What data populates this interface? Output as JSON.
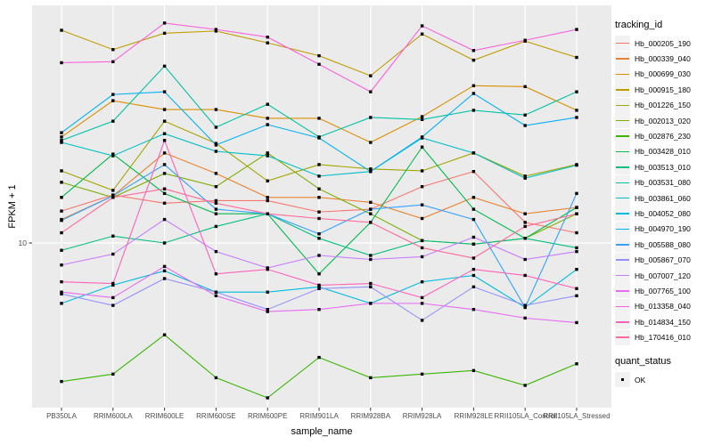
{
  "chart_data": {
    "type": "line",
    "xlabel": "sample_name",
    "ylabel": "FPKM + 1",
    "y_scale": "log10",
    "y_ticks": [
      {
        "label": "10",
        "value": 10
      }
    ],
    "panel_bg": "#EBEBEB",
    "gridline_color": "#FFFFFF",
    "point_color": "#000000",
    "axis_text_color": "#4D4D4D",
    "categories": [
      "PB350LA",
      "RRIM600LA",
      "RRIM600LE",
      "RRIM600SE",
      "RRIM600PE",
      "RRIM901LA",
      "RRIM928BA",
      "RRIM928LA",
      "RRIM928LE",
      "RRII105LA_Control",
      "RRII105LA_Stressed"
    ],
    "series": [
      {
        "name": "Hb_000205_190",
        "color": "#F8766D",
        "values": [
          13.1,
          15.0,
          14.0,
          14.3,
          14.3,
          13.0,
          13.3,
          16.1,
          18.3,
          11.9,
          10.9
        ]
      },
      {
        "name": "Hb_000339_040",
        "color": "#EA8331",
        "values": [
          12.2,
          14.9,
          21.4,
          18.0,
          14.7,
          14.7,
          14.1,
          12.3,
          14.7,
          12.8,
          13.5
        ]
      },
      {
        "name": "Hb_000699_030",
        "color": "#D89000",
        "values": [
          24.5,
          33.3,
          30.9,
          30.9,
          28.7,
          28.7,
          23.4,
          29.1,
          37.8,
          37.5,
          30.7
        ]
      },
      {
        "name": "Hb_000915_180",
        "color": "#C09B00",
        "values": [
          60.4,
          51.3,
          58.9,
          60.0,
          54.3,
          48.7,
          41.1,
          58.5,
          46.9,
          55.1,
          48.0
        ]
      },
      {
        "name": "Hb_001226_150",
        "color": "#A3A500",
        "values": [
          18.4,
          15.6,
          28.0,
          23.2,
          16.9,
          19.4,
          18.7,
          18.4,
          21.4,
          17.6,
          19.4
        ]
      },
      {
        "name": "Hb_002013_020",
        "color": "#7CAE00",
        "values": [
          16.7,
          14.7,
          18.0,
          16.1,
          21.4,
          15.8,
          12.8,
          10.2,
          9.9,
          10.4,
          12.8
        ]
      },
      {
        "name": "Hb_002876_230",
        "color": "#39B600",
        "values": [
          3.1,
          3.3,
          4.6,
          3.2,
          2.7,
          3.8,
          3.2,
          3.3,
          3.4,
          3.0,
          3.6
        ]
      },
      {
        "name": "Hb_003428_010",
        "color": "#00BB4E",
        "values": [
          14.7,
          21.2,
          15.2,
          12.8,
          12.8,
          7.7,
          11.9,
          22.5,
          13.3,
          10.4,
          13.5
        ]
      },
      {
        "name": "Hb_003513_010",
        "color": "#00BF7D",
        "values": [
          9.4,
          10.6,
          10.0,
          11.5,
          12.8,
          10.4,
          9.0,
          10.2,
          9.9,
          10.4,
          9.6
        ]
      },
      {
        "name": "Hb_003531_080",
        "color": "#00C1A3",
        "values": [
          23.8,
          28.0,
          44.6,
          26.6,
          32.3,
          24.5,
          28.9,
          28.4,
          30.7,
          29.5,
          35.9
        ]
      },
      {
        "name": "Hb_003861_060",
        "color": "#00BFC4",
        "values": [
          23.4,
          20.9,
          25.2,
          21.7,
          20.9,
          17.6,
          18.3,
          24.3,
          21.4,
          17.3,
          19.3
        ]
      },
      {
        "name": "Hb_004052_080",
        "color": "#00BAE0",
        "values": [
          6.0,
          7.0,
          7.9,
          6.6,
          6.6,
          6.9,
          6.0,
          7.2,
          7.6,
          5.8,
          8.0
        ]
      },
      {
        "name": "Hb_004970_190",
        "color": "#00B0F6",
        "values": [
          25.4,
          35.1,
          35.9,
          22.9,
          27.2,
          24.3,
          18.3,
          24.5,
          35.4,
          27.0,
          28.9
        ]
      },
      {
        "name": "Hb_005588_080",
        "color": "#35A2FF",
        "values": [
          12.1,
          14.9,
          19.4,
          13.3,
          12.8,
          10.8,
          13.3,
          13.8,
          12.2,
          5.8,
          15.2
        ]
      },
      {
        "name": "Hb_005867_070",
        "color": "#9590FF",
        "values": [
          6.5,
          5.9,
          7.4,
          6.6,
          5.7,
          6.8,
          6.9,
          5.2,
          6.9,
          5.9,
          6.4
        ]
      },
      {
        "name": "Hb_007007_120",
        "color": "#C77CFF",
        "values": [
          8.3,
          9.1,
          12.2,
          9.3,
          8.1,
          9.0,
          8.7,
          8.9,
          10.5,
          8.7,
          9.3
        ]
      },
      {
        "name": "Hb_007765_100",
        "color": "#E76BF3",
        "values": [
          6.6,
          6.3,
          8.2,
          6.4,
          5.6,
          5.7,
          6.0,
          6.0,
          5.7,
          5.3,
          5.1
        ]
      },
      {
        "name": "Hb_013358_040",
        "color": "#FA62DB",
        "values": [
          45.9,
          46.3,
          64.2,
          60.8,
          57.0,
          45.3,
          35.9,
          62.7,
          50.9,
          55.5,
          60.8
        ]
      },
      {
        "name": "Hb_014834_150",
        "color": "#FF62BC",
        "values": [
          7.2,
          7.1,
          23.8,
          7.7,
          8.0,
          7.0,
          7.1,
          6.3,
          8.0,
          7.6,
          6.8
        ]
      },
      {
        "name": "Hb_170416_010",
        "color": "#FF6A98",
        "values": [
          10.9,
          14.7,
          15.8,
          14.0,
          12.8,
          12.3,
          11.9,
          9.6,
          8.8,
          11.5,
          12.8
        ]
      }
    ]
  },
  "legend": {
    "tracking_title": "tracking_id",
    "quant_title": "quant_status",
    "quant_label": "OK",
    "key_fill": "#F2F2F2"
  }
}
